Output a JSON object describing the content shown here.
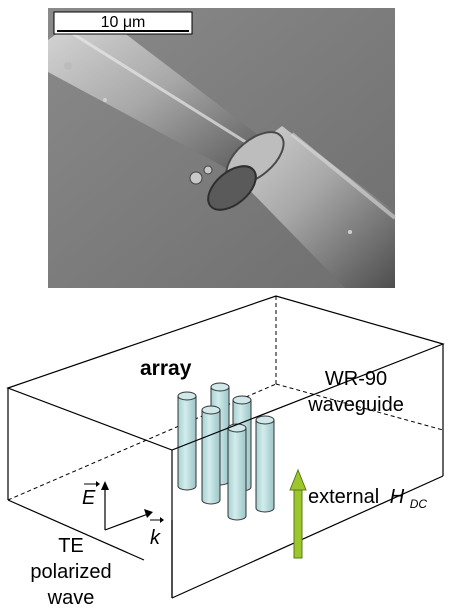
{
  "micrograph": {
    "scale_bar_label": "10 μm"
  },
  "diagram": {
    "array_label": "array",
    "waveguide_label_line1": "WR-90",
    "waveguide_label_line2": "waveguide",
    "field_label": "external",
    "field_symbol": "H",
    "field_subscript": "DC",
    "e_vector_label": "E",
    "k_vector_label": "k",
    "wave_label_line1": "TE",
    "wave_label_line2": "polarized",
    "wave_label_line3": "wave",
    "colors": {
      "cylinder_fill": "#b8dcdd",
      "cylinder_stroke": "#333333",
      "field_arrow": "#9dc62e",
      "field_arrow_stroke": "#5a7a10"
    }
  }
}
